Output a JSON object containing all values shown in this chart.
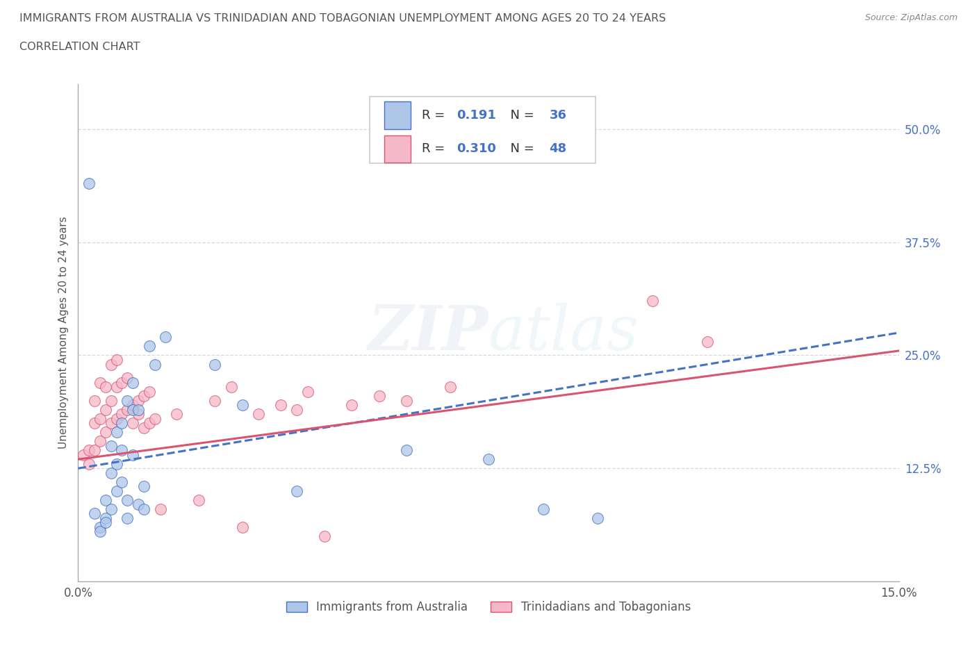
{
  "title_line1": "IMMIGRANTS FROM AUSTRALIA VS TRINIDADIAN AND TOBAGONIAN UNEMPLOYMENT AMONG AGES 20 TO 24 YEARS",
  "title_line2": "CORRELATION CHART",
  "source_text": "Source: ZipAtlas.com",
  "ylabel": "Unemployment Among Ages 20 to 24 years",
  "xlim": [
    0.0,
    0.15
  ],
  "ylim": [
    0.0,
    0.55
  ],
  "xticks": [
    0.0,
    0.05,
    0.1,
    0.15
  ],
  "xticklabels": [
    "0.0%",
    "",
    "",
    "15.0%"
  ],
  "yticks": [
    0.0,
    0.125,
    0.25,
    0.375,
    0.5
  ],
  "yticklabels": [
    "",
    "12.5%",
    "25.0%",
    "37.5%",
    "50.0%"
  ],
  "watermark": "ZIPatlas",
  "color_blue": "#aec6e8",
  "color_pink": "#f5b8c8",
  "line_blue": "#4472c4",
  "line_pink": "#d9546e",
  "R_blue": 0.191,
  "N_blue": 36,
  "R_pink": 0.31,
  "N_pink": 48,
  "blue_scatter": [
    [
      0.002,
      0.44
    ],
    [
      0.003,
      0.075
    ],
    [
      0.004,
      0.06
    ],
    [
      0.004,
      0.055
    ],
    [
      0.005,
      0.09
    ],
    [
      0.005,
      0.07
    ],
    [
      0.005,
      0.065
    ],
    [
      0.006,
      0.08
    ],
    [
      0.006,
      0.12
    ],
    [
      0.006,
      0.15
    ],
    [
      0.007,
      0.1
    ],
    [
      0.007,
      0.13
    ],
    [
      0.007,
      0.165
    ],
    [
      0.008,
      0.11
    ],
    [
      0.008,
      0.145
    ],
    [
      0.008,
      0.175
    ],
    [
      0.009,
      0.07
    ],
    [
      0.009,
      0.09
    ],
    [
      0.009,
      0.2
    ],
    [
      0.01,
      0.14
    ],
    [
      0.01,
      0.19
    ],
    [
      0.01,
      0.22
    ],
    [
      0.011,
      0.085
    ],
    [
      0.011,
      0.19
    ],
    [
      0.012,
      0.08
    ],
    [
      0.012,
      0.105
    ],
    [
      0.013,
      0.26
    ],
    [
      0.014,
      0.24
    ],
    [
      0.016,
      0.27
    ],
    [
      0.025,
      0.24
    ],
    [
      0.03,
      0.195
    ],
    [
      0.04,
      0.1
    ],
    [
      0.06,
      0.145
    ],
    [
      0.075,
      0.135
    ],
    [
      0.085,
      0.08
    ],
    [
      0.095,
      0.07
    ]
  ],
  "pink_scatter": [
    [
      0.001,
      0.14
    ],
    [
      0.002,
      0.145
    ],
    [
      0.002,
      0.13
    ],
    [
      0.003,
      0.145
    ],
    [
      0.003,
      0.175
    ],
    [
      0.003,
      0.2
    ],
    [
      0.004,
      0.155
    ],
    [
      0.004,
      0.18
    ],
    [
      0.004,
      0.22
    ],
    [
      0.005,
      0.165
    ],
    [
      0.005,
      0.19
    ],
    [
      0.005,
      0.215
    ],
    [
      0.006,
      0.175
    ],
    [
      0.006,
      0.2
    ],
    [
      0.006,
      0.24
    ],
    [
      0.007,
      0.18
    ],
    [
      0.007,
      0.215
    ],
    [
      0.007,
      0.245
    ],
    [
      0.008,
      0.185
    ],
    [
      0.008,
      0.22
    ],
    [
      0.009,
      0.19
    ],
    [
      0.009,
      0.225
    ],
    [
      0.01,
      0.195
    ],
    [
      0.01,
      0.175
    ],
    [
      0.011,
      0.2
    ],
    [
      0.011,
      0.185
    ],
    [
      0.012,
      0.17
    ],
    [
      0.012,
      0.205
    ],
    [
      0.013,
      0.175
    ],
    [
      0.013,
      0.21
    ],
    [
      0.014,
      0.18
    ],
    [
      0.015,
      0.08
    ],
    [
      0.018,
      0.185
    ],
    [
      0.022,
      0.09
    ],
    [
      0.025,
      0.2
    ],
    [
      0.028,
      0.215
    ],
    [
      0.03,
      0.06
    ],
    [
      0.033,
      0.185
    ],
    [
      0.037,
      0.195
    ],
    [
      0.04,
      0.19
    ],
    [
      0.042,
      0.21
    ],
    [
      0.045,
      0.05
    ],
    [
      0.05,
      0.195
    ],
    [
      0.055,
      0.205
    ],
    [
      0.06,
      0.2
    ],
    [
      0.068,
      0.215
    ],
    [
      0.105,
      0.31
    ],
    [
      0.115,
      0.265
    ]
  ],
  "background_color": "#ffffff",
  "grid_color": "#d8d8d8",
  "title_color": "#555555",
  "axis_color": "#aaaaaa"
}
